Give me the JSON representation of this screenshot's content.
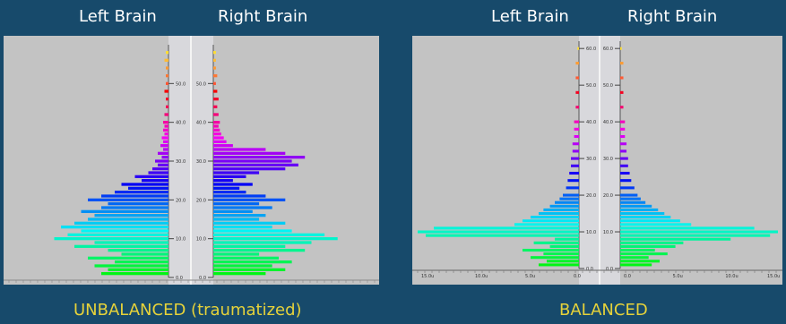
{
  "panels": [
    {
      "left_heading": "Left Brain",
      "right_heading": "Right Brain",
      "caption": "UNBALANCED (traumatized)"
    },
    {
      "left_heading": "Left Brain",
      "right_heading": "Right Brain",
      "caption": "BALANCED"
    }
  ],
  "colors": {
    "background": "#174a6b",
    "plot_background": "#c3c3c3",
    "caption": "#e6d23a",
    "headings": "#ffffff"
  },
  "chart_data": [
    {
      "type": "bar",
      "orientation": "horizontal-mirrored",
      "y_ticks": [
        "0.0",
        "10.0",
        "20.0",
        "30.0",
        "40.0",
        "50.0"
      ],
      "ylim": [
        0,
        60
      ],
      "series": [
        {
          "name": "Left Brain",
          "y": [
            1,
            2,
            3,
            4,
            5,
            6,
            7,
            8,
            9,
            10,
            11,
            12,
            13,
            14,
            15,
            16,
            17,
            18,
            19,
            20,
            21,
            22,
            23,
            24,
            25,
            26,
            27,
            28,
            29,
            30,
            31,
            32,
            33,
            34,
            35,
            36,
            37,
            38,
            39,
            40,
            42,
            44,
            46,
            48,
            50,
            52,
            54,
            56,
            58
          ],
          "values": [
            0.5,
            0.45,
            0.55,
            0.4,
            0.6,
            0.35,
            0.45,
            0.7,
            0.55,
            0.85,
            0.75,
            0.65,
            0.8,
            0.7,
            0.6,
            0.55,
            0.65,
            0.5,
            0.45,
            0.6,
            0.5,
            0.4,
            0.3,
            0.35,
            0.2,
            0.25,
            0.15,
            0.12,
            0.08,
            0.1,
            0.05,
            0.08,
            0.04,
            0.06,
            0.04,
            0.05,
            0.03,
            0.04,
            0.03,
            0.04,
            0.03,
            0.02,
            0.02,
            0.03,
            0.02,
            0.02,
            0.02,
            0.03,
            0.02
          ]
        },
        {
          "name": "Right Brain",
          "y": [
            1,
            2,
            3,
            4,
            5,
            6,
            7,
            8,
            9,
            10,
            11,
            12,
            13,
            14,
            15,
            16,
            17,
            18,
            19,
            20,
            21,
            22,
            23,
            24,
            25,
            26,
            27,
            28,
            29,
            30,
            31,
            32,
            33,
            34,
            35,
            36,
            37,
            38,
            39,
            40,
            42,
            44,
            46,
            48,
            50,
            52,
            54,
            56,
            58
          ],
          "values": [
            0.4,
            0.55,
            0.45,
            0.6,
            0.5,
            0.35,
            0.7,
            0.55,
            0.75,
            0.95,
            0.85,
            0.6,
            0.45,
            0.55,
            0.35,
            0.4,
            0.3,
            0.45,
            0.35,
            0.55,
            0.4,
            0.25,
            0.2,
            0.3,
            0.15,
            0.25,
            0.35,
            0.55,
            0.65,
            0.6,
            0.7,
            0.55,
            0.4,
            0.15,
            0.1,
            0.08,
            0.06,
            0.05,
            0.04,
            0.05,
            0.04,
            0.03,
            0.04,
            0.03,
            0.02,
            0.03,
            0.02,
            0.02,
            0.02
          ]
        }
      ]
    },
    {
      "type": "bar",
      "orientation": "horizontal-mirrored",
      "y_ticks": [
        "0.0",
        "10.0",
        "20.0",
        "30.0",
        "40.0",
        "50.0",
        "60.0"
      ],
      "x_ticks": [
        "15.0u",
        "10.0u",
        "5.0u",
        "0.0",
        "0.0",
        "5.0u",
        "10.0u",
        "15.0u"
      ],
      "ylim": [
        0,
        62
      ],
      "series": [
        {
          "name": "Left Brain",
          "y": [
            1,
            2,
            3,
            4,
            5,
            6,
            7,
            8,
            9,
            10,
            11,
            12,
            13,
            14,
            15,
            16,
            17,
            18,
            19,
            20,
            22,
            24,
            26,
            28,
            30,
            32,
            34,
            36,
            38,
            40,
            44,
            48,
            52,
            56,
            60
          ],
          "values": [
            0.25,
            0.2,
            0.3,
            0.22,
            0.35,
            0.18,
            0.28,
            0.15,
            0.95,
            1.0,
            0.9,
            0.4,
            0.35,
            0.3,
            0.25,
            0.22,
            0.18,
            0.15,
            0.12,
            0.1,
            0.08,
            0.07,
            0.06,
            0.05,
            0.05,
            0.04,
            0.04,
            0.03,
            0.03,
            0.03,
            0.02,
            0.02,
            0.02,
            0.02,
            0.01
          ]
        },
        {
          "name": "Right Brain",
          "y": [
            1,
            2,
            3,
            4,
            5,
            6,
            7,
            8,
            9,
            10,
            11,
            12,
            13,
            14,
            15,
            16,
            17,
            18,
            19,
            20,
            22,
            24,
            26,
            28,
            30,
            32,
            34,
            36,
            38,
            40,
            44,
            48,
            52,
            56,
            60
          ],
          "values": [
            0.2,
            0.25,
            0.18,
            0.3,
            0.22,
            0.35,
            0.4,
            0.7,
            0.95,
            1.0,
            0.85,
            0.45,
            0.38,
            0.32,
            0.28,
            0.24,
            0.2,
            0.16,
            0.13,
            0.11,
            0.09,
            0.07,
            0.06,
            0.05,
            0.05,
            0.04,
            0.04,
            0.03,
            0.03,
            0.03,
            0.02,
            0.02,
            0.02,
            0.02,
            0.01
          ]
        }
      ]
    }
  ]
}
